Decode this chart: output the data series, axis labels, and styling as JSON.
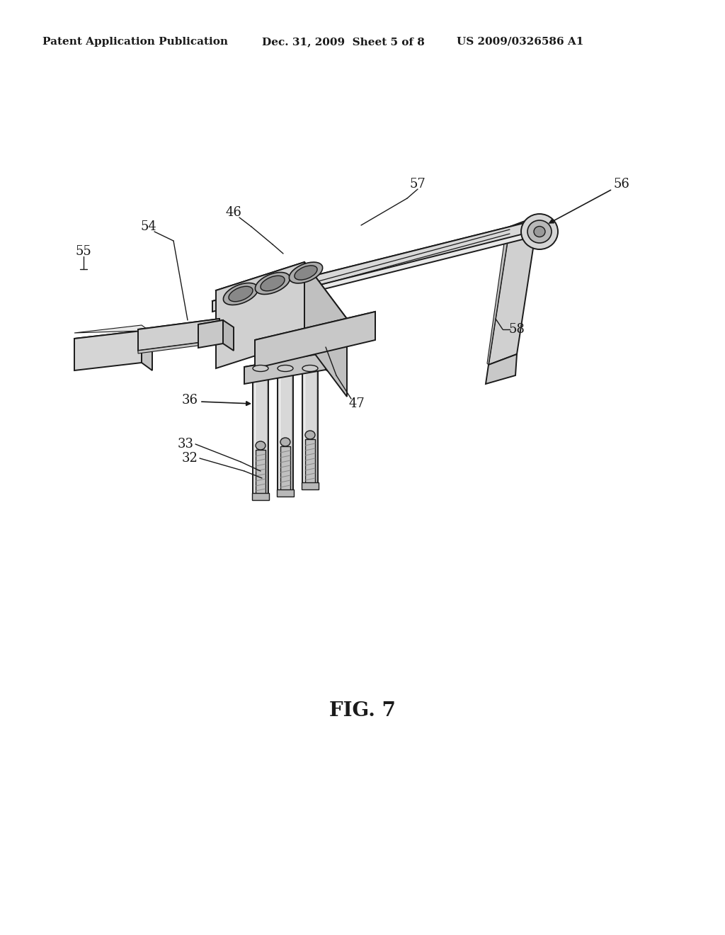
{
  "background_color": "#ffffff",
  "header_left": "Patent Application Publication",
  "header_mid": "Dec. 31, 2009  Sheet 5 of 8",
  "header_right": "US 2009/0326586 A1",
  "figure_label": "FIG. 7",
  "font_color": "#1a1a1a",
  "line_color": "#1a1a1a",
  "header_fontsize": 11,
  "label_fontsize": 13,
  "fig_label_fontsize": 20
}
